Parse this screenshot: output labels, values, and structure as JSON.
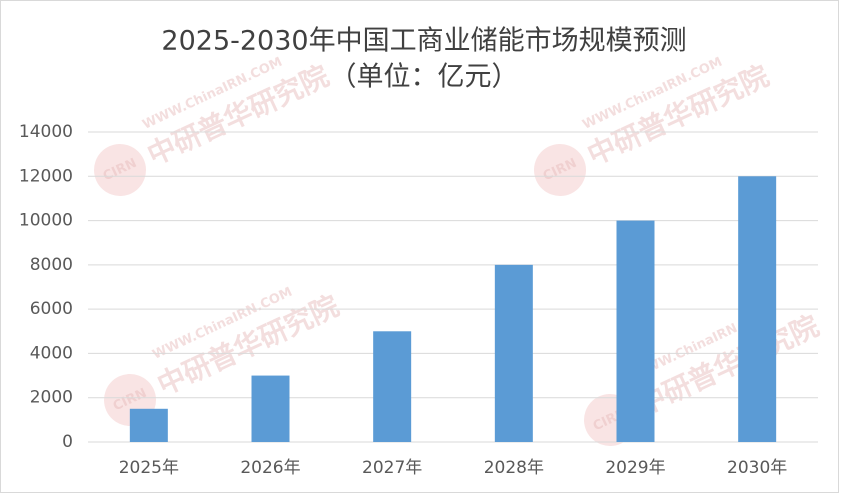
{
  "chart_data": {
    "type": "bar",
    "title": "2025-2030年中国工商业储能市场规模预测",
    "subtitle": "（单位：亿元）",
    "categories": [
      "2025年",
      "2026年",
      "2027年",
      "2028年",
      "2029年",
      "2030年"
    ],
    "values": [
      1500,
      3000,
      5000,
      8000,
      10000,
      12000
    ],
    "color": "#5b9bd5",
    "ylim": [
      0,
      14000
    ],
    "yticks": [
      0,
      2000,
      4000,
      6000,
      8000,
      10000,
      12000,
      14000
    ],
    "grid": true,
    "watermark": {
      "logo": "CIRN",
      "url": "WWW.ChinaIRN.COM",
      "name": "中研普华研究院"
    }
  }
}
